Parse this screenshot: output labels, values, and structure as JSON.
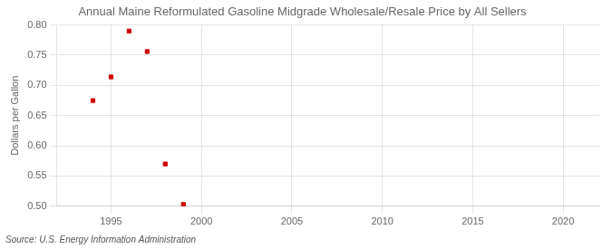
{
  "chart_data": {
    "type": "scatter",
    "title": "Annual Maine Reformulated Gasoline Midgrade Wholesale/Resale Price by All Sellers",
    "ylabel": "Dollars per Gallon",
    "annotation": "Source: U.S. Energy Information Administration",
    "x": [
      1994,
      1995,
      1996,
      1997,
      1998,
      1999
    ],
    "values": [
      0.675,
      0.714,
      0.79,
      0.756,
      0.57,
      0.503
    ],
    "color": "#cc0000",
    "marker": "square",
    "xlim": [
      1992,
      2022
    ],
    "ylim": [
      0.5,
      0.8
    ],
    "xticks": [
      1995,
      2000,
      2005,
      2010,
      2015,
      2020
    ],
    "yticks": [
      {
        "value": 0.5,
        "label": "0.50"
      },
      0.55,
      {
        "value": 0.6,
        "label": "0.60"
      },
      0.65,
      {
        "value": 0.7,
        "label": "0.70"
      },
      0.75,
      {
        "value": 0.8,
        "label": "0.80"
      }
    ],
    "grid": true
  }
}
